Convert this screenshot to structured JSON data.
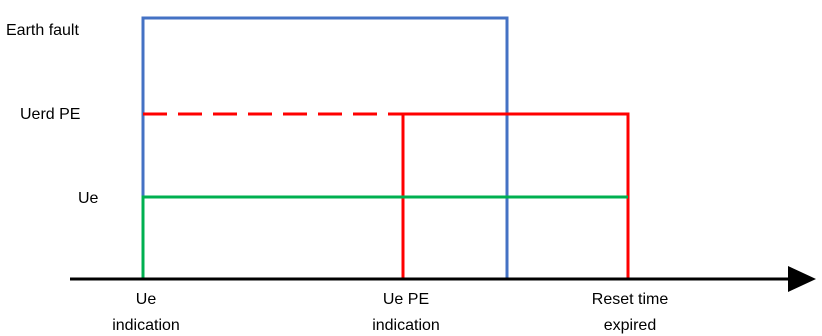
{
  "signals": [
    {
      "label": "Earth fault",
      "color": "#4472c4"
    },
    {
      "label": "Uerd PE",
      "color": "#ff0000"
    },
    {
      "label": "Ue",
      "color": "#00b050"
    }
  ],
  "events": [
    {
      "line1": "Ue",
      "line2": "indication"
    },
    {
      "line1": "Ue PE",
      "line2": "indication"
    },
    {
      "line1": "Reset time",
      "line2": "expired"
    }
  ],
  "axis_color": "#000000"
}
